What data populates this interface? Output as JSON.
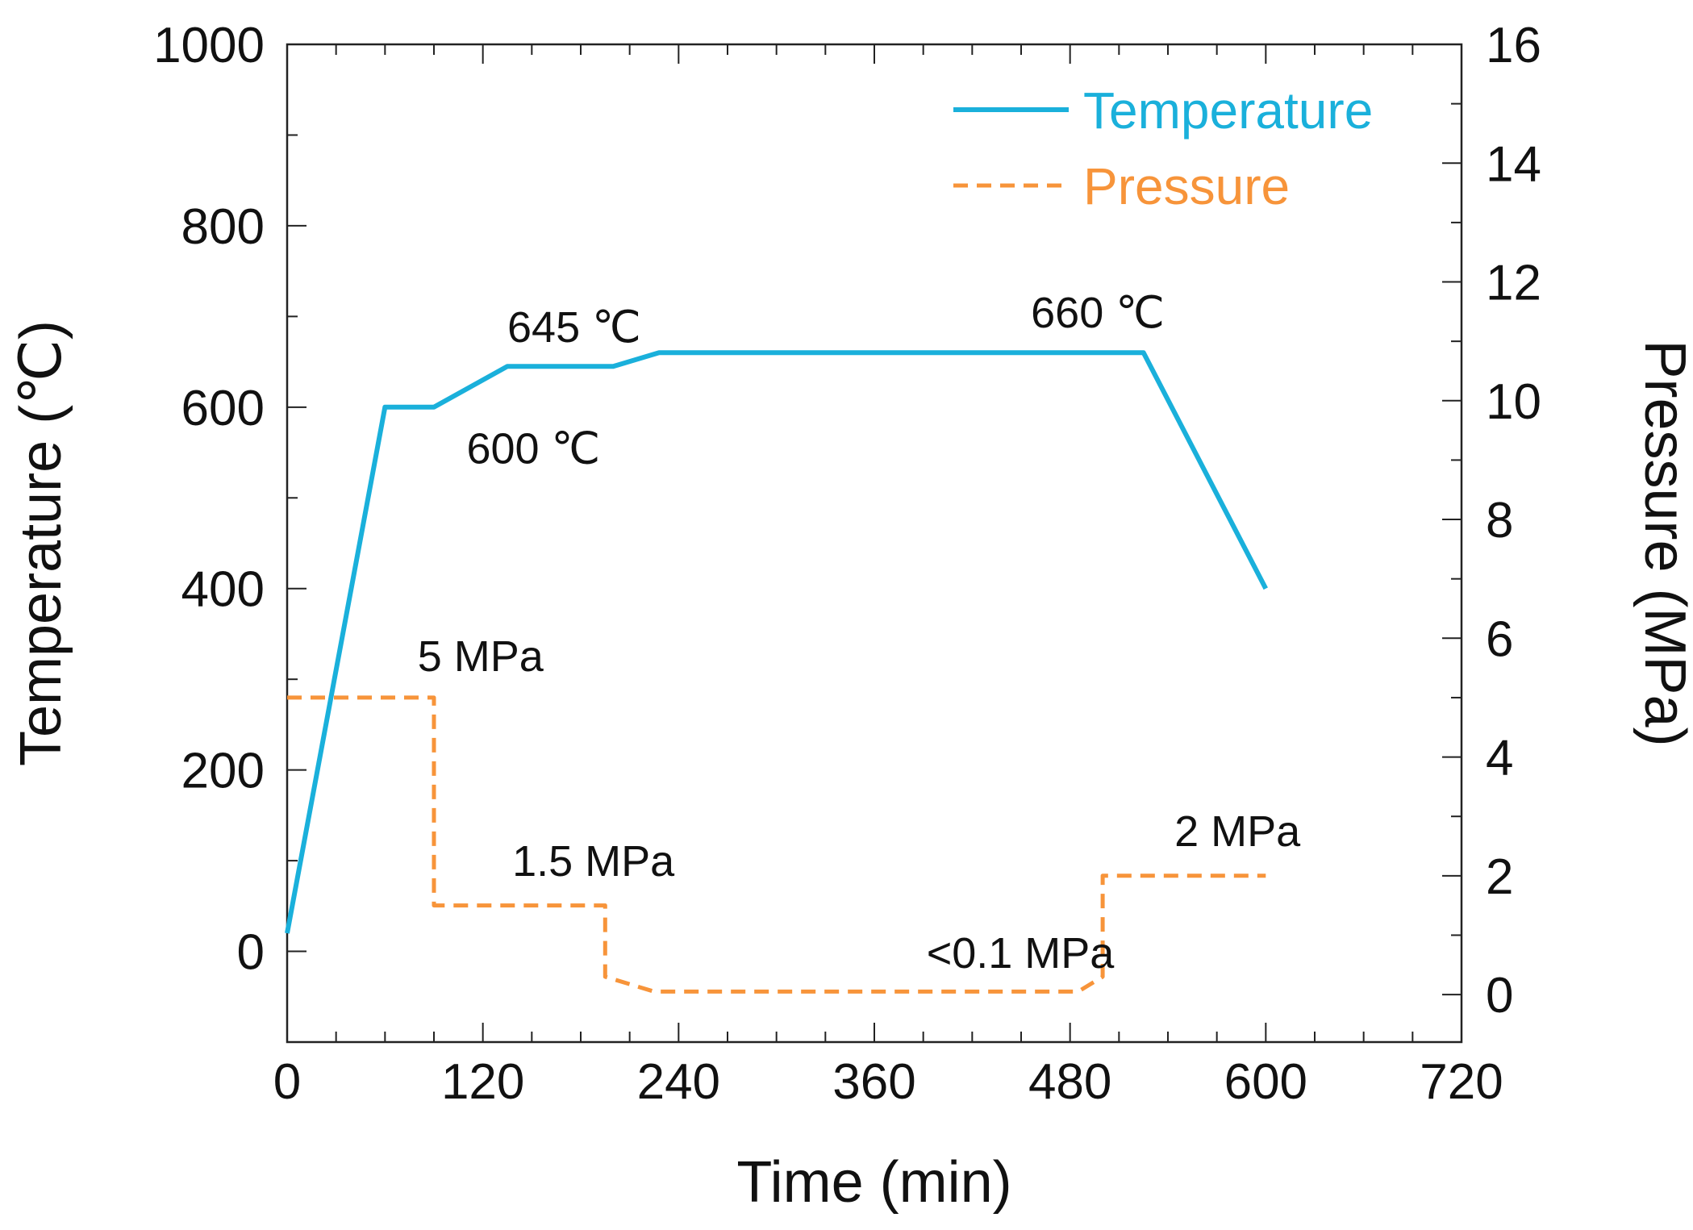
{
  "chart_data": {
    "type": "line",
    "title": "",
    "xlabel": "Time (min)",
    "ylabel_left": "Temperature (℃)",
    "ylabel_right": "Pressure (MPa)",
    "xlim": [
      0,
      720
    ],
    "ylim_left": [
      -100,
      1000
    ],
    "ylim_right": [
      -0.8,
      16
    ],
    "x_ticks": [
      0,
      120,
      240,
      360,
      480,
      600,
      720
    ],
    "x_tick_labels": [
      "0",
      "120",
      "240",
      "360",
      "480",
      "600",
      "720"
    ],
    "y_left_ticks": [
      0,
      200,
      400,
      600,
      800,
      1000
    ],
    "y_left_tick_labels": [
      "0",
      "200",
      "400",
      "600",
      "800",
      "1000"
    ],
    "y_right_ticks": [
      0,
      2,
      4,
      6,
      8,
      10,
      12,
      14,
      16
    ],
    "y_right_tick_labels": [
      "0",
      "2",
      "4",
      "6",
      "8",
      "10",
      "12",
      "14",
      "16"
    ],
    "grid": false,
    "legend_position": "top-right",
    "series": [
      {
        "name": "Temperature",
        "axis": "left",
        "color": "#1ab0db",
        "style": "solid",
        "x": [
          0,
          60,
          90,
          135,
          200,
          228,
          525,
          600
        ],
        "y": [
          20,
          600,
          600,
          645,
          645,
          660,
          660,
          400
        ]
      },
      {
        "name": "Pressure",
        "axis": "right",
        "color": "#f7943a",
        "style": "dashed",
        "x": [
          0,
          90,
          90,
          195,
          195,
          225,
          485,
          500,
          500,
          600
        ],
        "y": [
          5,
          5,
          1.5,
          1.5,
          0.3,
          0.05,
          0.05,
          0.3,
          2,
          2
        ]
      }
    ],
    "annotations": [
      {
        "text": "645 ℃",
        "x": 135,
        "y": 672,
        "axis": "left"
      },
      {
        "text": "660 ℃",
        "x": 456,
        "y": 688,
        "axis": "left"
      },
      {
        "text": "600 ℃",
        "x": 110,
        "y": 538,
        "axis": "left"
      },
      {
        "text": "5 MPa",
        "x": 80,
        "y": 5.45,
        "axis": "right"
      },
      {
        "text": "1.5 MPa",
        "x": 138,
        "y": 2.0,
        "axis": "right"
      },
      {
        "text": "<0.1 MPa",
        "x": 392,
        "y": 0.45,
        "axis": "right"
      },
      {
        "text": "2 MPa",
        "x": 544,
        "y": 2.5,
        "axis": "right"
      }
    ]
  }
}
